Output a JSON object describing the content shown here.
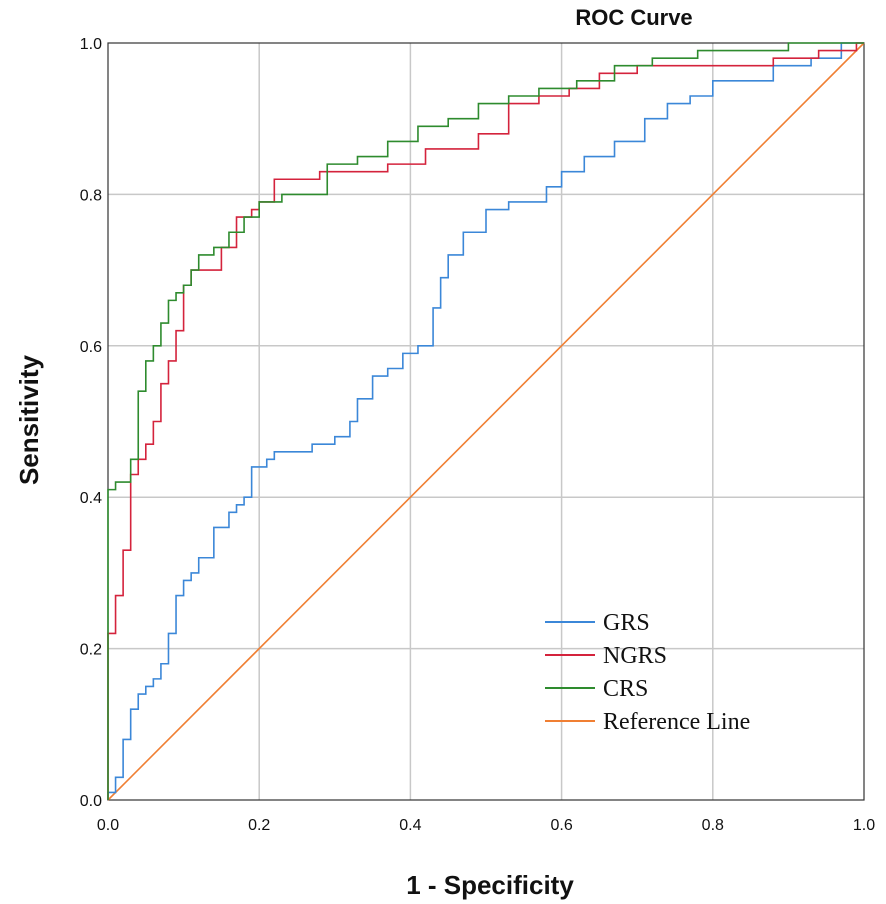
{
  "chart_data": {
    "type": "line",
    "title": "ROC Curve",
    "xlabel": "1 - Specificity",
    "ylabel": "Sensitivity",
    "xlim": [
      0,
      1
    ],
    "ylim": [
      0,
      1
    ],
    "grid": true,
    "legend_position": "bottom-right",
    "xticks": [
      0.0,
      0.2,
      0.4,
      0.6,
      0.8,
      1.0
    ],
    "yticks": [
      0.0,
      0.2,
      0.4,
      0.6,
      0.8,
      1.0
    ],
    "xtick_labels": [
      "0.0",
      "0.2",
      "0.4",
      "0.6",
      "0.8",
      "1.0"
    ],
    "ytick_labels": [
      "0.0",
      "0.2",
      "0.4",
      "0.6",
      "0.8",
      "1.0"
    ],
    "series": [
      {
        "name": "GRS",
        "color": "#3b87d8",
        "x": [
          0,
          0.01,
          0.02,
          0.03,
          0.04,
          0.05,
          0.06,
          0.07,
          0.08,
          0.09,
          0.1,
          0.11,
          0.12,
          0.14,
          0.16,
          0.17,
          0.18,
          0.19,
          0.21,
          0.22,
          0.24,
          0.27,
          0.3,
          0.32,
          0.33,
          0.35,
          0.37,
          0.39,
          0.41,
          0.43,
          0.44,
          0.45,
          0.47,
          0.5,
          0.53,
          0.55,
          0.58,
          0.6,
          0.63,
          0.67,
          0.71,
          0.74,
          0.77,
          0.8,
          0.84,
          0.88,
          0.93,
          0.97,
          1.0
        ],
        "y": [
          0,
          0.01,
          0.03,
          0.08,
          0.12,
          0.14,
          0.15,
          0.16,
          0.18,
          0.22,
          0.27,
          0.29,
          0.3,
          0.32,
          0.36,
          0.38,
          0.39,
          0.4,
          0.44,
          0.45,
          0.46,
          0.46,
          0.47,
          0.48,
          0.5,
          0.53,
          0.56,
          0.57,
          0.59,
          0.6,
          0.65,
          0.69,
          0.72,
          0.75,
          0.78,
          0.79,
          0.79,
          0.81,
          0.83,
          0.85,
          0.87,
          0.9,
          0.92,
          0.93,
          0.95,
          0.95,
          0.97,
          0.98,
          1.0
        ]
      },
      {
        "name": "NGRS",
        "color": "#d4233c",
        "x": [
          0,
          0,
          0.01,
          0.02,
          0.03,
          0.04,
          0.05,
          0.06,
          0.07,
          0.08,
          0.09,
          0.1,
          0.11,
          0.12,
          0.13,
          0.15,
          0.17,
          0.19,
          0.2,
          0.22,
          0.24,
          0.28,
          0.32,
          0.37,
          0.42,
          0.45,
          0.49,
          0.53,
          0.57,
          0.61,
          0.65,
          0.7,
          0.76,
          0.82,
          0.88,
          0.94,
          0.99,
          1.0
        ],
        "y": [
          0,
          0.22,
          0.22,
          0.27,
          0.33,
          0.43,
          0.45,
          0.47,
          0.5,
          0.55,
          0.58,
          0.62,
          0.68,
          0.7,
          0.7,
          0.7,
          0.73,
          0.77,
          0.78,
          0.79,
          0.82,
          0.82,
          0.83,
          0.83,
          0.84,
          0.86,
          0.86,
          0.88,
          0.92,
          0.93,
          0.94,
          0.96,
          0.97,
          0.97,
          0.97,
          0.98,
          0.99,
          1.0
        ]
      },
      {
        "name": "CRS",
        "color": "#2e8b2e",
        "x": [
          0,
          0,
          0.01,
          0.02,
          0.03,
          0.04,
          0.05,
          0.06,
          0.07,
          0.08,
          0.09,
          0.1,
          0.11,
          0.12,
          0.14,
          0.16,
          0.18,
          0.2,
          0.23,
          0.26,
          0.29,
          0.33,
          0.37,
          0.41,
          0.45,
          0.49,
          0.53,
          0.57,
          0.62,
          0.67,
          0.72,
          0.78,
          0.84,
          0.9,
          0.96,
          1.0
        ],
        "y": [
          0,
          0.29,
          0.41,
          0.42,
          0.42,
          0.45,
          0.54,
          0.58,
          0.6,
          0.63,
          0.66,
          0.67,
          0.68,
          0.7,
          0.72,
          0.73,
          0.75,
          0.77,
          0.79,
          0.8,
          0.8,
          0.84,
          0.85,
          0.87,
          0.89,
          0.9,
          0.92,
          0.93,
          0.94,
          0.95,
          0.97,
          0.98,
          0.99,
          0.99,
          1.0,
          1.0
        ]
      },
      {
        "name": "Reference Line",
        "color": "#f07f33",
        "x": [
          0,
          1
        ],
        "y": [
          0,
          1
        ]
      }
    ]
  }
}
